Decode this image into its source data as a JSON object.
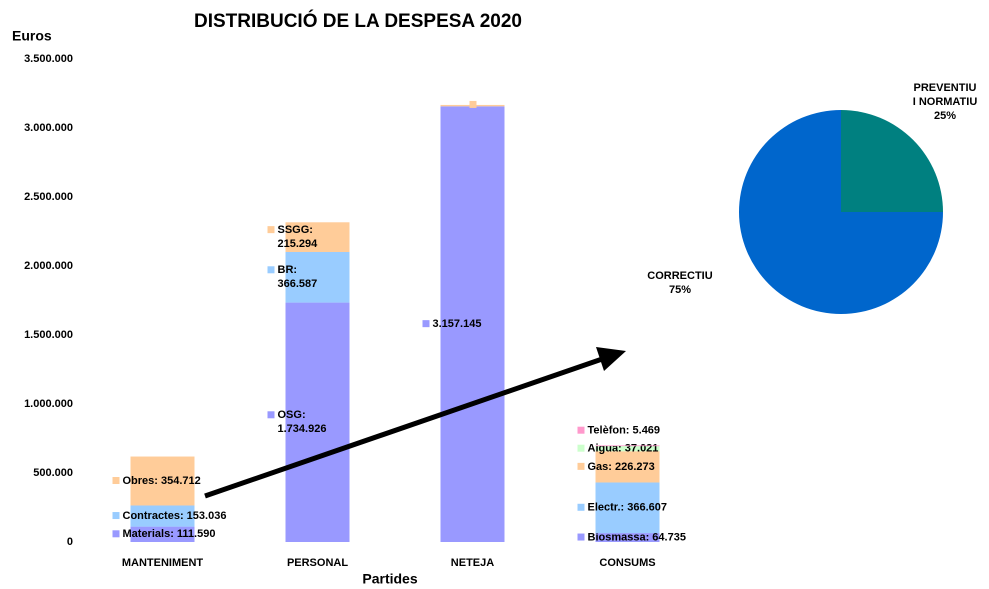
{
  "chart_data": [
    {
      "type": "stacked_bar",
      "title": "DISTRIBUCIÓ DE LA DESPESA 2020",
      "y_label": "Euros",
      "x_label": "Partides",
      "ylim": [
        0,
        3500000
      ],
      "yticks": [
        0,
        {
          "value": 500000,
          "label": "500.000"
        },
        {
          "value": 1000000,
          "label": "1.000.000"
        },
        {
          "value": 1500000,
          "label": "1.500.000"
        },
        {
          "value": 2000000,
          "label": "2.000.000"
        },
        {
          "value": 2500000,
          "label": "2.500.000"
        },
        {
          "value": 3000000,
          "label": "3.000.000"
        },
        {
          "value": 3500000,
          "label": "3.500.000"
        }
      ],
      "categories": [
        "MANTENIMENT",
        "PERSONAL",
        "NETEJA",
        "CONSUMS"
      ],
      "stacks": [
        [
          {
            "value": 111590,
            "color": "#9999ff",
            "label": [
              "Materials: 111.590"
            ]
          },
          {
            "value": 153036,
            "color": "#99ccff",
            "label": [
              "Contractes: 153.036"
            ]
          },
          {
            "value": 354712,
            "color": "#ffcc99",
            "label": [
              "Obres: 354.712"
            ]
          }
        ],
        [
          {
            "value": 1734926,
            "color": "#9999ff",
            "label": [
              "OSG:",
              "1.734.926"
            ]
          },
          {
            "value": 366587,
            "color": "#99ccff",
            "label": [
              "BR:",
              "366.587"
            ]
          },
          {
            "value": 215294,
            "color": "#ffcc99",
            "label": [
              "SSGG:",
              "215.294"
            ]
          }
        ],
        [
          {
            "value": 3157145,
            "color": "#9999ff",
            "label": [
              "3.157.145"
            ]
          },
          {
            "value": 10000,
            "color": "#ffcc99"
          }
        ],
        [
          {
            "value": 64735,
            "color": "#9999ff",
            "label": [
              "Biosmassa: 64.735"
            ]
          },
          {
            "value": 366607,
            "color": "#99ccff",
            "label": [
              "Electr.: 366.607"
            ]
          },
          {
            "value": 226273,
            "color": "#ffcc99",
            "label": [
              "Gas: 226.273"
            ]
          },
          {
            "value": 37021,
            "color": "#ccffcc",
            "label": [
              "Aigua: 37.021"
            ]
          },
          {
            "value": 5469,
            "color": "#ff99cc",
            "label": [
              "Telèfon: 5.469"
            ]
          }
        ]
      ]
    },
    {
      "type": "pie",
      "slices": [
        {
          "label": [
            "PREVENTIU",
            "I NORMATIU"
          ],
          "value": 25,
          "value_label": "25%",
          "color": "#008080"
        },
        {
          "label": [
            "CORRECTIU"
          ],
          "value": 75,
          "value_label": "75%",
          "color": "#0066cc"
        }
      ]
    }
  ]
}
